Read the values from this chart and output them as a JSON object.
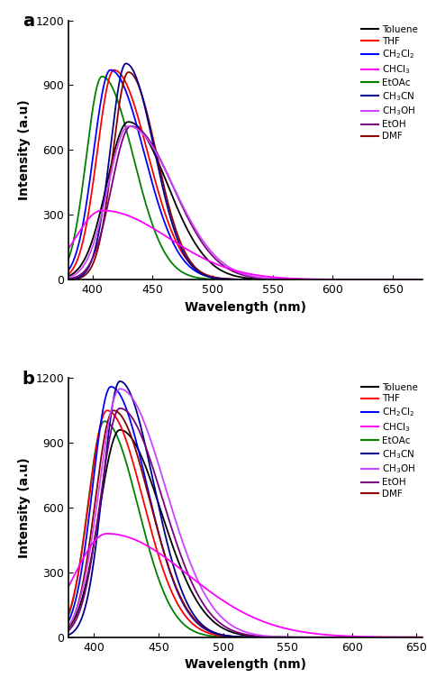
{
  "colors": [
    "#000000",
    "#ff0000",
    "#0000ff",
    "#ff00ff",
    "#008000",
    "#00008b",
    "#cc44ff",
    "#7b007b",
    "#8b0000"
  ],
  "legend_labels": [
    "Toluene",
    "THF",
    "CH$_2$Cl$_2$",
    "CHCl$_3$",
    "EtOAc",
    "CH$_3$CN",
    "CH$_3$OH",
    "EtOH",
    "DMF"
  ],
  "panel_a": {
    "label": "a",
    "peaks": [
      430,
      418,
      415,
      408,
      408,
      428,
      430,
      432,
      430
    ],
    "amplitudes": [
      730,
      970,
      970,
      320,
      940,
      1000,
      710,
      710,
      960
    ],
    "widths": [
      18,
      14,
      14,
      22,
      13,
      13,
      17,
      16,
      13
    ],
    "skew": [
      1.8,
      2.0,
      2.0,
      2.5,
      2.0,
      1.8,
      2.2,
      2.2,
      1.8
    ],
    "xlim": [
      380,
      675
    ],
    "ylim": [
      0,
      1200
    ],
    "yticks": [
      0,
      300,
      600,
      900,
      1200
    ],
    "xticks": [
      400,
      450,
      500,
      550,
      600,
      650
    ],
    "xlabel": "Wavelength (nm)",
    "ylabel": "Intensity (a.u)"
  },
  "panel_b": {
    "label": "b",
    "peaks": [
      420,
      410,
      413,
      410,
      408,
      420,
      420,
      420,
      415
    ],
    "amplitudes": [
      960,
      1050,
      1160,
      480,
      1000,
      1185,
      1150,
      1060,
      1050
    ],
    "widths": [
      16,
      14,
      14,
      25,
      13,
      13,
      16,
      15,
      14
    ],
    "skew": [
      2.0,
      2.0,
      2.0,
      2.5,
      2.0,
      2.0,
      2.2,
      2.2,
      2.0
    ],
    "xlim": [
      380,
      655
    ],
    "ylim": [
      0,
      1200
    ],
    "yticks": [
      0,
      300,
      600,
      900,
      1200
    ],
    "xticks": [
      400,
      450,
      500,
      550,
      600,
      650
    ],
    "xlabel": "Wavelength (nm)",
    "ylabel": "Intensity (a.u)"
  }
}
